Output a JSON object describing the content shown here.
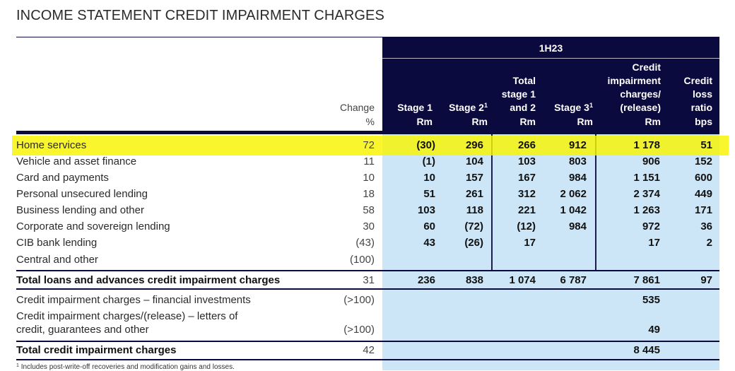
{
  "title": "INCOME STATEMENT CREDIT IMPAIRMENT CHARGES",
  "group_label": "1H23",
  "columns": {
    "change": "Change\n%",
    "stage1": "Stage 1\nRm",
    "stage2_main": "Stage 2",
    "stage2_sup": "1",
    "stage2_unit": "Rm",
    "total12": "Total\nstage 1\nand 2\nRm",
    "stage3_main": "Stage 3",
    "stage3_sup": "1",
    "stage3_unit": "Rm",
    "cic": "Credit\nimpairment\ncharges/\n(release)\nRm",
    "clr": "Credit\nloss\nratio\nbps"
  },
  "rows": [
    {
      "label": "Home services",
      "change": "72",
      "s1": "(30)",
      "s2": "296",
      "t12": "266",
      "s3": "912",
      "cic": "1 178",
      "clr": "51"
    },
    {
      "label": "Vehicle and asset finance",
      "change": "11",
      "s1": "(1)",
      "s2": "104",
      "t12": "103",
      "s3": "803",
      "cic": "906",
      "clr": "152"
    },
    {
      "label": "Card and payments",
      "change": "10",
      "s1": "10",
      "s2": "157",
      "t12": "167",
      "s3": "984",
      "cic": "1 151",
      "clr": "600"
    },
    {
      "label": "Personal unsecured lending",
      "change": "18",
      "s1": "51",
      "s2": "261",
      "t12": "312",
      "s3": "2 062",
      "cic": "2 374",
      "clr": "449"
    },
    {
      "label": "Business lending and other",
      "change": "58",
      "s1": "103",
      "s2": "118",
      "t12": "221",
      "s3": "1 042",
      "cic": "1 263",
      "clr": "171"
    },
    {
      "label": "Corporate and sovereign lending",
      "change": "30",
      "s1": "60",
      "s2": "(72)",
      "t12": "(12)",
      "s3": "984",
      "cic": "972",
      "clr": "36"
    },
    {
      "label": "CIB bank lending",
      "change": "(43)",
      "s1": "43",
      "s2": "(26)",
      "t12": "17",
      "s3": "",
      "cic": "17",
      "clr": "2"
    },
    {
      "label": "Central and other",
      "change": "(100)",
      "s1": "",
      "s2": "",
      "t12": "",
      "s3": "",
      "cic": "",
      "clr": ""
    },
    {
      "label": "Total loans and advances credit impairment charges",
      "change": "31",
      "s1": "236",
      "s2": "838",
      "t12": "1 074",
      "s3": "6 787",
      "cic": "7 861",
      "clr": "97"
    },
    {
      "label": "Credit impairment charges – financial investments",
      "change": "(>100)",
      "s1": "",
      "s2": "",
      "t12": "",
      "s3": "",
      "cic": "535",
      "clr": ""
    },
    {
      "label": "Credit impairment charges/(release) – letters of\n   credit, guarantees and other",
      "change": "(>100)",
      "s1": "",
      "s2": "",
      "t12": "",
      "s3": "",
      "cic": "49",
      "clr": ""
    },
    {
      "label": "Total credit impairment charges",
      "change": "42",
      "s1": "",
      "s2": "",
      "t12": "",
      "s3": "",
      "cic": "8 445",
      "clr": ""
    }
  ],
  "footnote": {
    "marker": "1",
    "text": "Includes post-write-off recoveries and modification gains and losses."
  },
  "colors": {
    "header_band": "#0b0a3f",
    "body_band": "#cce6f7",
    "highlight": "#f8f400"
  }
}
